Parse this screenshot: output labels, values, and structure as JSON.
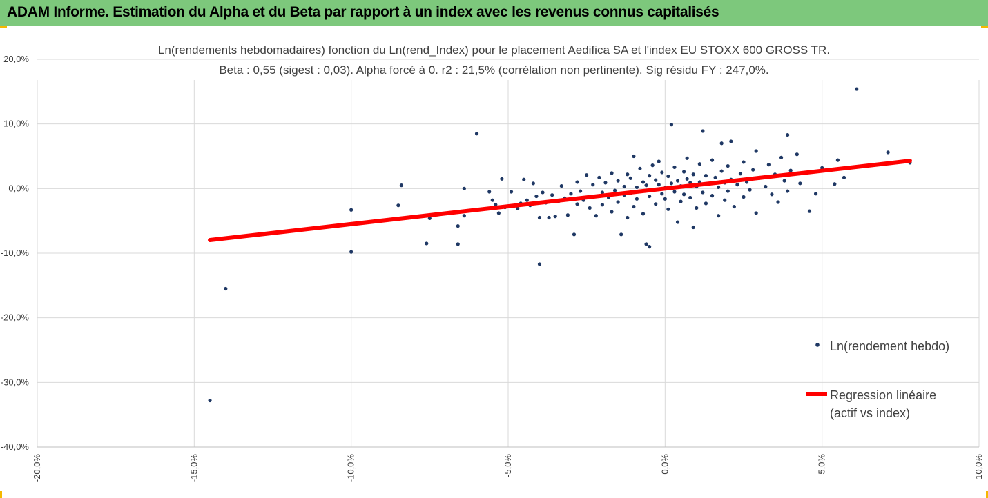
{
  "header": {
    "title": "ADAM Informe. Estimation du Alpha et du Beta par rapport à un index avec les revenus connus capitalisés"
  },
  "colors": {
    "header_bg": "#7dc87c",
    "points": "#1f3864",
    "regression": "#ff0000",
    "grid": "#d9d9d9",
    "text": "#404040"
  },
  "chart_data": {
    "type": "scatter",
    "title_line1": "Ln(rendements hebdomadaires) fonction du Ln(rend_Index) pour le placement Aedifica SA et l'index EU STOXX 600 GROSS TR.",
    "title_line2": "Beta : 0,55 (sigest : 0,03).  Alpha forcé à 0. r2 : 21,5% (corrélation non pertinente). Sig résidu FY : 247,0%.",
    "xlim": [
      -20,
      10
    ],
    "ylim": [
      -40,
      20
    ],
    "x_ticks": [
      -20,
      -15,
      -10,
      -5,
      0,
      5,
      10
    ],
    "x_tick_labels": [
      "-20,0%",
      "-15,0%",
      "-10,0%",
      "-5,0%",
      "0,0%",
      "5,0%",
      "10,0%"
    ],
    "y_ticks": [
      20,
      10,
      0,
      -10,
      -20,
      -30,
      -40
    ],
    "y_tick_labels": [
      "20,0%",
      "10,0%",
      "0,0%",
      "-10,0%",
      "-20,0%",
      "-30,0%",
      "-40,0%"
    ],
    "grid": true,
    "legend_position": "right",
    "series": [
      {
        "name": "Ln(rendement hebdo)",
        "type": "scatter",
        "points": [
          [
            -14.5,
            -32.8
          ],
          [
            -14.0,
            -15.5
          ],
          [
            -10.0,
            -9.8
          ],
          [
            -10.0,
            -3.3
          ],
          [
            -8.5,
            -2.6
          ],
          [
            -8.4,
            0.5
          ],
          [
            -7.6,
            -8.5
          ],
          [
            -7.5,
            -4.6
          ],
          [
            -6.6,
            -8.6
          ],
          [
            -6.6,
            -5.8
          ],
          [
            -6.4,
            0.0
          ],
          [
            -6.4,
            -4.2
          ],
          [
            -6.0,
            8.5
          ],
          [
            -5.6,
            -0.5
          ],
          [
            -5.5,
            -1.8
          ],
          [
            -5.4,
            -2.5
          ],
          [
            -5.3,
            -3.8
          ],
          [
            -5.2,
            1.5
          ],
          [
            -5.1,
            -2.9
          ],
          [
            -4.9,
            -0.5
          ],
          [
            -4.7,
            -3.1
          ],
          [
            -4.6,
            -2.3
          ],
          [
            -4.5,
            1.4
          ],
          [
            -4.4,
            -1.8
          ],
          [
            -4.3,
            -2.6
          ],
          [
            -4.2,
            0.8
          ],
          [
            -4.1,
            -1.2
          ],
          [
            -4.0,
            -11.7
          ],
          [
            -4.0,
            -4.5
          ],
          [
            -3.9,
            -0.6
          ],
          [
            -3.8,
            -2.2
          ],
          [
            -3.7,
            -4.5
          ],
          [
            -3.6,
            -1.0
          ],
          [
            -3.5,
            -4.3
          ],
          [
            -3.4,
            -2.0
          ],
          [
            -3.3,
            0.4
          ],
          [
            -3.2,
            -1.5
          ],
          [
            -3.1,
            -4.1
          ],
          [
            -3.0,
            -0.8
          ],
          [
            -2.9,
            -7.1
          ],
          [
            -2.8,
            -2.4
          ],
          [
            -2.8,
            1.0
          ],
          [
            -2.7,
            -0.4
          ],
          [
            -2.6,
            -1.8
          ],
          [
            -2.5,
            2.1
          ],
          [
            -2.4,
            -3.0
          ],
          [
            -2.3,
            0.6
          ],
          [
            -2.3,
            -1.2
          ],
          [
            -2.2,
            -4.2
          ],
          [
            -2.1,
            1.7
          ],
          [
            -2.0,
            -0.6
          ],
          [
            -2.0,
            -2.5
          ],
          [
            -1.9,
            0.9
          ],
          [
            -1.8,
            -1.4
          ],
          [
            -1.7,
            2.4
          ],
          [
            -1.7,
            -3.6
          ],
          [
            -1.6,
            -0.3
          ],
          [
            -1.5,
            1.2
          ],
          [
            -1.5,
            -2.1
          ],
          [
            -1.4,
            -7.1
          ],
          [
            -1.3,
            0.3
          ],
          [
            -1.3,
            -1.0
          ],
          [
            -1.2,
            2.2
          ],
          [
            -1.2,
            -4.5
          ],
          [
            -1.1,
            -0.7
          ],
          [
            -1.1,
            1.6
          ],
          [
            -1.0,
            5.0
          ],
          [
            -1.0,
            -2.8
          ],
          [
            -0.9,
            0.2
          ],
          [
            -0.9,
            -1.6
          ],
          [
            -0.8,
            3.1
          ],
          [
            -0.8,
            -0.4
          ],
          [
            -0.7,
            1.0
          ],
          [
            -0.7,
            -3.9
          ],
          [
            -0.6,
            -8.6
          ],
          [
            -0.6,
            0.5
          ],
          [
            -0.5,
            -9.0
          ],
          [
            -0.5,
            2.0
          ],
          [
            -0.5,
            -1.2
          ],
          [
            -0.4,
            3.6
          ],
          [
            -0.4,
            -0.2
          ],
          [
            -0.3,
            1.3
          ],
          [
            -0.3,
            -2.4
          ],
          [
            -0.2,
            0.6
          ],
          [
            -0.2,
            4.2
          ],
          [
            -0.1,
            -0.8
          ],
          [
            -0.1,
            2.5
          ],
          [
            0.0,
            0.1
          ],
          [
            0.0,
            -1.6
          ],
          [
            0.1,
            1.9
          ],
          [
            0.1,
            -3.2
          ],
          [
            0.2,
            0.8
          ],
          [
            0.2,
            9.9
          ],
          [
            0.3,
            -0.5
          ],
          [
            0.3,
            3.3
          ],
          [
            0.4,
            1.2
          ],
          [
            0.4,
            -5.2
          ],
          [
            0.5,
            0.4
          ],
          [
            0.5,
            -2.0
          ],
          [
            0.6,
            2.6
          ],
          [
            0.6,
            -0.9
          ],
          [
            0.7,
            1.5
          ],
          [
            0.7,
            4.7
          ],
          [
            0.8,
            -1.4
          ],
          [
            0.8,
            0.9
          ],
          [
            0.9,
            -6.0
          ],
          [
            0.9,
            2.2
          ],
          [
            1.0,
            0.3
          ],
          [
            1.0,
            -3.0
          ],
          [
            1.1,
            3.8
          ],
          [
            1.1,
            1.0
          ],
          [
            1.2,
            8.9
          ],
          [
            1.2,
            -0.6
          ],
          [
            1.3,
            2.0
          ],
          [
            1.3,
            -2.3
          ],
          [
            1.4,
            0.7
          ],
          [
            1.5,
            4.4
          ],
          [
            1.5,
            -1.1
          ],
          [
            1.6,
            1.7
          ],
          [
            1.7,
            -4.2
          ],
          [
            1.7,
            0.2
          ],
          [
            1.8,
            7.0
          ],
          [
            1.8,
            2.7
          ],
          [
            1.9,
            -1.8
          ],
          [
            1.9,
            0.9
          ],
          [
            2.0,
            3.5
          ],
          [
            2.0,
            -0.4
          ],
          [
            2.1,
            7.3
          ],
          [
            2.1,
            1.4
          ],
          [
            2.2,
            -2.8
          ],
          [
            2.3,
            0.6
          ],
          [
            2.4,
            2.3
          ],
          [
            2.5,
            -1.3
          ],
          [
            2.5,
            4.1
          ],
          [
            2.6,
            1.0
          ],
          [
            2.7,
            -0.2
          ],
          [
            2.8,
            2.9
          ],
          [
            2.9,
            5.8
          ],
          [
            2.9,
            -3.8
          ],
          [
            3.0,
            1.6
          ],
          [
            3.2,
            0.3
          ],
          [
            3.3,
            3.7
          ],
          [
            3.4,
            -0.9
          ],
          [
            3.5,
            2.2
          ],
          [
            3.6,
            -2.1
          ],
          [
            3.7,
            4.8
          ],
          [
            3.8,
            1.2
          ],
          [
            3.9,
            8.3
          ],
          [
            3.9,
            -0.4
          ],
          [
            4.0,
            2.8
          ],
          [
            4.2,
            5.3
          ],
          [
            4.3,
            0.8
          ],
          [
            4.5,
            2.5
          ],
          [
            4.6,
            -3.5
          ],
          [
            4.8,
            -0.8
          ],
          [
            5.0,
            3.2
          ],
          [
            5.4,
            0.7
          ],
          [
            5.5,
            4.4
          ],
          [
            5.7,
            1.7
          ],
          [
            6.1,
            15.4
          ],
          [
            7.1,
            5.6
          ],
          [
            7.8,
            4.0
          ]
        ]
      },
      {
        "name": "Regression linéaire\n(actif vs index)",
        "type": "line",
        "beta": 0.55,
        "x_range": [
          -14.5,
          7.8
        ]
      }
    ]
  },
  "legend": {
    "item1": "Ln(rendement hebdo)",
    "item2_line1": "Regression linéaire",
    "item2_line2": "(actif vs index)"
  }
}
